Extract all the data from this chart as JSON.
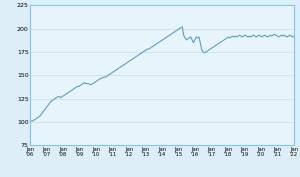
{
  "title": "",
  "background_color": "#ddeef8",
  "plot_bg_color": "#e8f4fb",
  "line_color": "#5a9fc0",
  "line_width": 0.8,
  "ylim": [
    75,
    225
  ],
  "yticks": [
    75,
    100,
    125,
    150,
    175,
    200,
    225
  ],
  "xlabel": "",
  "ylabel": "",
  "grid_color": "#c8dce8",
  "grid_lw": 0.5,
  "x_labels": [
    "Jan\n'06",
    "Jan\n'07",
    "Jan\n'08",
    "Jan\n'09",
    "Jan\n'10",
    "Jan\n'11",
    "Jan\n'12",
    "Jan\n'13",
    "Jan\n'14",
    "Jan\n'15",
    "Jan\n'16",
    "Jan\n'17",
    "Jan\n'18",
    "Jan\n'19",
    "Jan\n'20",
    "Jan\n'21",
    "Jan\n'22"
  ],
  "series": [
    100,
    101,
    101,
    102,
    103,
    104,
    105,
    106,
    108,
    110,
    112,
    114,
    116,
    118,
    120,
    122,
    123,
    124,
    125,
    126,
    127,
    127,
    126,
    127,
    128,
    129,
    130,
    131,
    132,
    133,
    134,
    135,
    136,
    137,
    138,
    138,
    139,
    140,
    141,
    142,
    141,
    141,
    141,
    140,
    140,
    141,
    142,
    143,
    144,
    145,
    146,
    147,
    147,
    148,
    148,
    149,
    150,
    151,
    152,
    153,
    154,
    155,
    156,
    157,
    158,
    159,
    160,
    161,
    162,
    163,
    164,
    165,
    166,
    167,
    168,
    169,
    170,
    171,
    172,
    173,
    174,
    175,
    176,
    177,
    178,
    178,
    179,
    180,
    181,
    182,
    183,
    184,
    185,
    186,
    187,
    188,
    189,
    190,
    191,
    192,
    193,
    194,
    195,
    196,
    197,
    198,
    199,
    200,
    201,
    202,
    193,
    190,
    188,
    189,
    190,
    191,
    188,
    185,
    188,
    191,
    190,
    191,
    184,
    177,
    175,
    174,
    175,
    176,
    177,
    178,
    179,
    180,
    181,
    182,
    183,
    184,
    185,
    186,
    187,
    188,
    189,
    190,
    191,
    190,
    191,
    192,
    191,
    192,
    191,
    192,
    193,
    192,
    191,
    192,
    193,
    192,
    191,
    192,
    191,
    192,
    193,
    192,
    191,
    192,
    193,
    192,
    191,
    192,
    193,
    192,
    191,
    192,
    193,
    192,
    193,
    194,
    193,
    192,
    191,
    192,
    193,
    192,
    193,
    192,
    191,
    192,
    193,
    192,
    191,
    192
  ],
  "border_color": "#7ec8e3",
  "tick_label_fontsize": 3.8,
  "ytick_label_fontsize": 4.5
}
